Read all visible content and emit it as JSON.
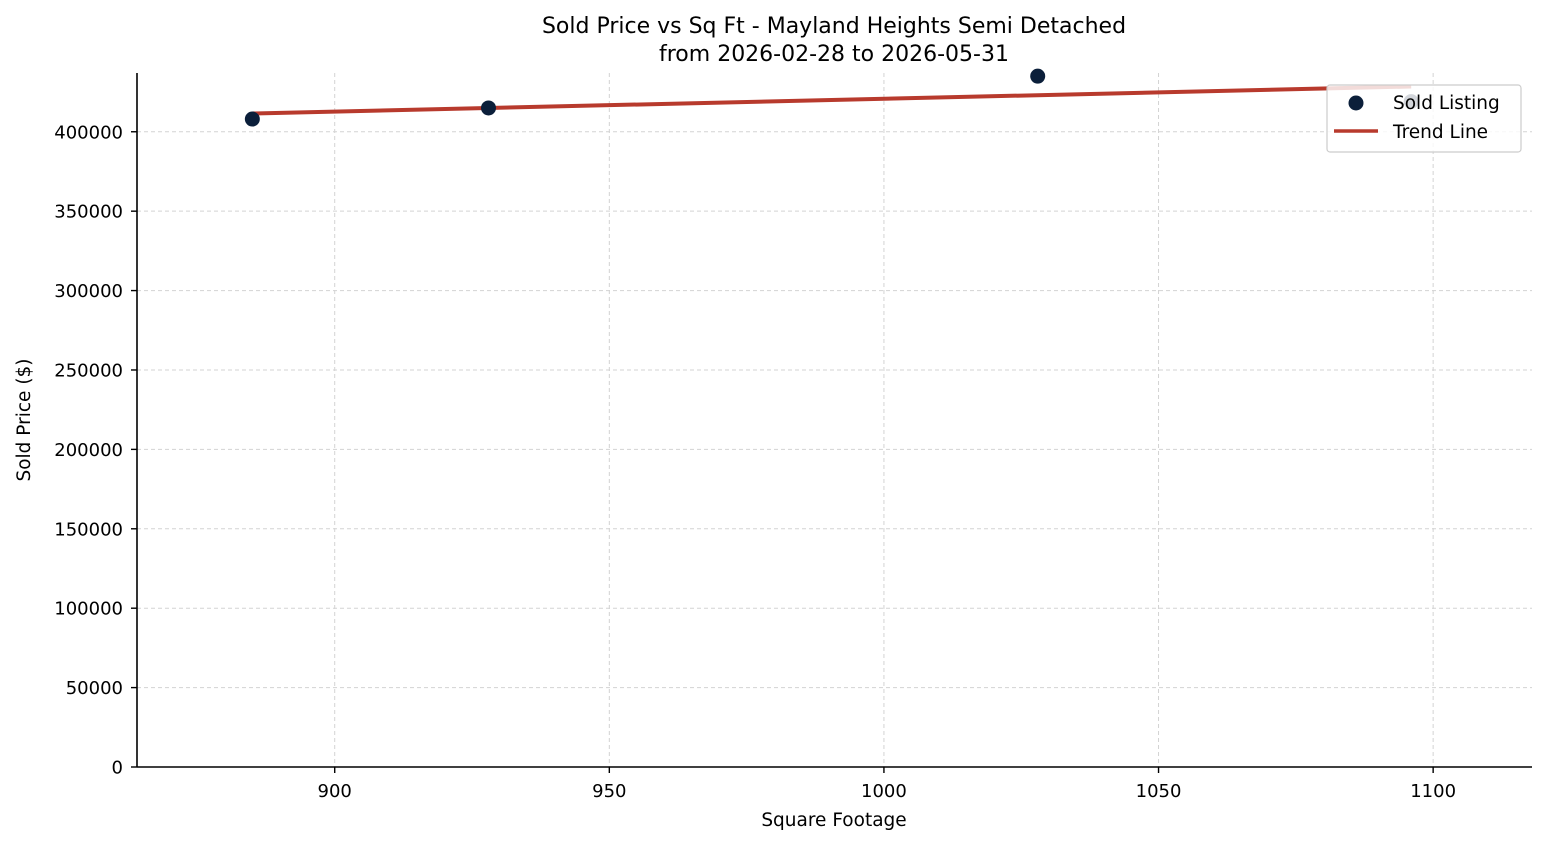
{
  "chart_data": {
    "type": "scatter",
    "title": "Sold Price vs Sq Ft - Mayland Heights Semi Detached",
    "subtitle": "from 2026-02-28 to 2026-05-31",
    "xlabel": "Square Footage",
    "ylabel": "Sold Price ($)",
    "xlim": [
      864,
      1118
    ],
    "ylim": [
      0,
      437000
    ],
    "x_ticks": [
      900,
      950,
      1000,
      1050,
      1100
    ],
    "y_ticks": [
      0,
      50000,
      100000,
      150000,
      200000,
      250000,
      300000,
      350000,
      400000
    ],
    "grid": true,
    "legend_position": "top-right",
    "series": [
      {
        "name": "Sold Listing",
        "kind": "scatter",
        "color": "#0b1f3a",
        "points": [
          {
            "x": 885,
            "y": 408000
          },
          {
            "x": 928,
            "y": 415000
          },
          {
            "x": 1028,
            "y": 435000
          },
          {
            "x": 1096,
            "y": 419000
          }
        ]
      },
      {
        "name": "Trend Line",
        "kind": "line",
        "color": "#b83a2d",
        "points": [
          {
            "x": 885,
            "y": 411500
          },
          {
            "x": 1096,
            "y": 428500
          }
        ]
      }
    ]
  }
}
